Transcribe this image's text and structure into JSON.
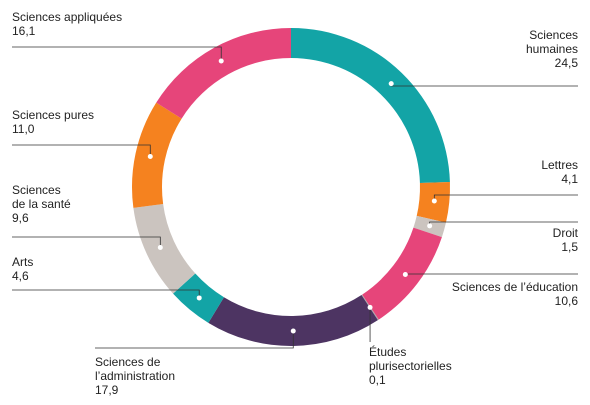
{
  "chart_data": {
    "type": "donut",
    "categories": [
      "Sciences\nhumaines",
      "Lettres",
      "Droit",
      "Sciences de l’éducation",
      "Études\nplurisectorielles",
      "Sciences de\nl’administration",
      "Arts",
      "Sciences\nde la santé",
      "Sciences pures",
      "Sciences appliquées"
    ],
    "values": [
      24.5,
      4.1,
      1.5,
      10.6,
      0.1,
      17.9,
      4.6,
      9.6,
      11.0,
      16.1
    ],
    "value_labels": [
      "24,5",
      "4,1",
      "1,5",
      "10,6",
      "0,1",
      "17,9",
      "4,6",
      "9,6",
      "11,0",
      "16,1"
    ],
    "colors": [
      "#13a4a6",
      "#f5821f",
      "#cbc4bf",
      "#e6457a",
      "#a8a8a8",
      "#4d3462",
      "#13a4a6",
      "#cbc4bf",
      "#f5821f",
      "#e6457a"
    ]
  }
}
